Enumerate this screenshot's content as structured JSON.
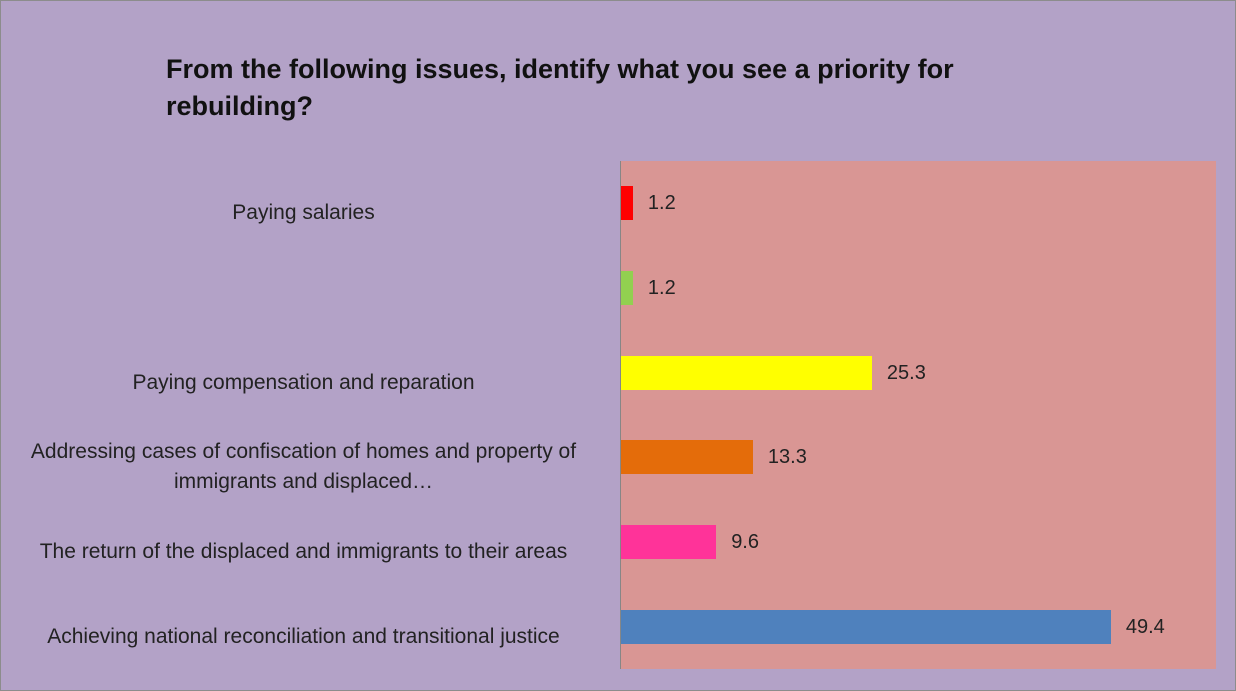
{
  "chart_data": {
    "type": "bar",
    "orientation": "horizontal",
    "title": "From the following issues, identify what you see a priority for rebuilding?",
    "categories": [
      "Paying salaries",
      null,
      "Paying compensation and reparation",
      "Addressing cases of confiscation of homes and property of immigrants and displaced…",
      "The return of the displaced and immigrants to their areas",
      "Achieving national reconciliation and transitional justice"
    ],
    "values": [
      1.2,
      1.2,
      25.3,
      13.3,
      9.6,
      49.4
    ],
    "colors": [
      "#ff0000",
      "#92d050",
      "#ffff00",
      "#e46c0a",
      "#ff3399",
      "#4f81bd"
    ],
    "xlim": [
      0,
      60
    ]
  }
}
